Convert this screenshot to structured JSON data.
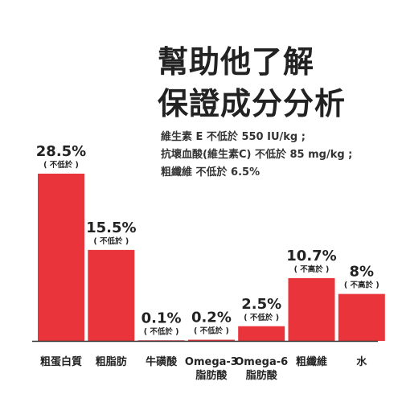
{
  "heading": {
    "line1": "幫助他了解",
    "line2": "保證成分分析"
  },
  "notes": [
    "維生素 E 不低於 550 IU/kg ;",
    "抗壞血酸(維生素C) 不低於 85 mg/kg ;",
    "粗纖維 不低於 6.5%"
  ],
  "colors": {
    "bar": "#e8343a",
    "text": "#222222",
    "axis": "#333333"
  },
  "chart_data": {
    "type": "bar",
    "categories": [
      [
        "粗蛋白質"
      ],
      [
        "粗脂肪"
      ],
      [
        "牛磺酸"
      ],
      [
        "Omega-3",
        "脂肪酸"
      ],
      [
        "Omega-6",
        "脂肪酸"
      ],
      [
        "粗纖維"
      ],
      [
        "水"
      ]
    ],
    "values": [
      28.5,
      15.5,
      0.1,
      0.2,
      2.5,
      10.7,
      8
    ],
    "value_labels": [
      "28.5%",
      "15.5%",
      "0.1%",
      "0.2%",
      "2.5%",
      "10.7%",
      "8%"
    ],
    "qualifiers": [
      "( 不低於 )",
      "( 不低於 )",
      "( 不低於 )",
      "( 不低於 )",
      "( 不低於 )",
      "( 不高於 )",
      "( 不高於 )"
    ],
    "ylim": [
      0,
      28.5
    ],
    "grid": false,
    "legend": "none"
  }
}
